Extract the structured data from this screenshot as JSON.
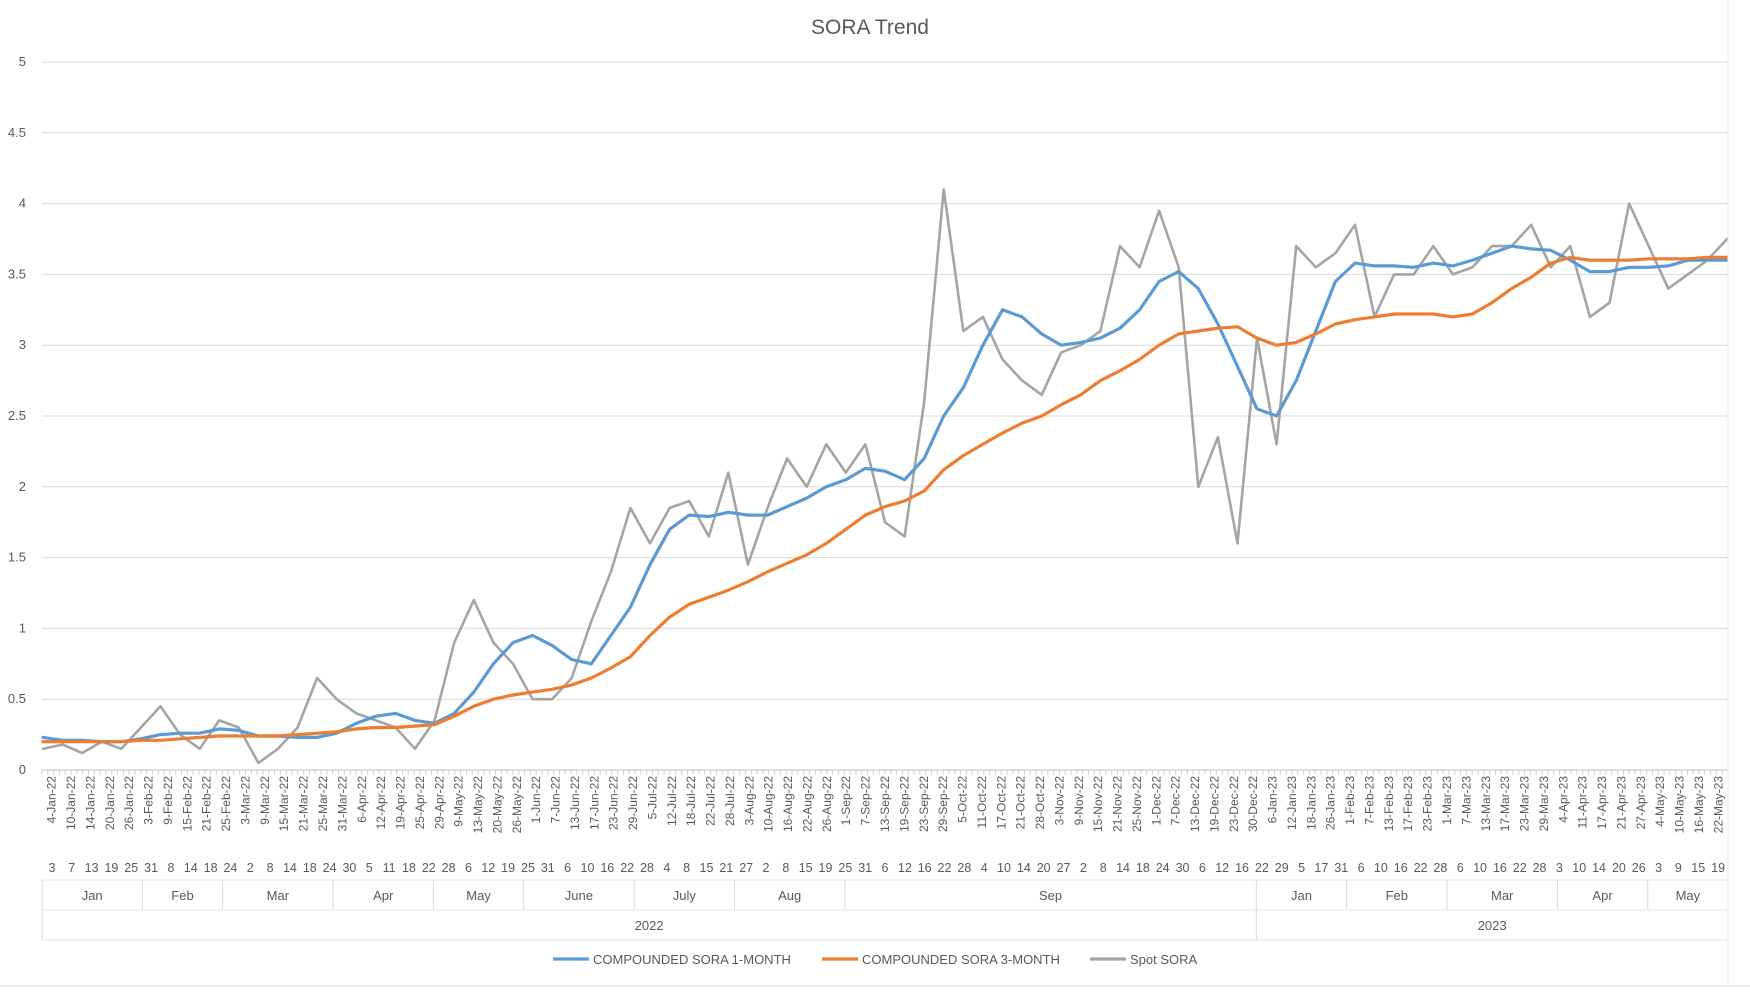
{
  "chart_data": {
    "type": "line",
    "title": "SORA Trend",
    "ylim": [
      0,
      5
    ],
    "yticks": [
      "0",
      "0.5",
      "1",
      "1.5",
      "2",
      "2.5",
      "3",
      "3.5",
      "4",
      "4.5",
      "5"
    ],
    "grid": "horizontal",
    "legend": "bottom",
    "x_date_labels": [
      "4-Jan-22",
      "10-Jan-22",
      "14-Jan-22",
      "20-Jan-22",
      "26-Jan-22",
      "3-Feb-22",
      "9-Feb-22",
      "15-Feb-22",
      "21-Feb-22",
      "25-Feb-22",
      "3-Mar-22",
      "9-Mar-22",
      "15-Mar-22",
      "21-Mar-22",
      "25-Mar-22",
      "31-Mar-22",
      "6-Apr-22",
      "12-Apr-22",
      "19-Apr-22",
      "25-Apr-22",
      "29-Apr-22",
      "9-May-22",
      "13-May-22",
      "20-May-22",
      "26-May-22",
      "1-Jun-22",
      "7-Jun-22",
      "13-Jun-22",
      "17-Jun-22",
      "23-Jun-22",
      "29-Jun-22",
      "5-Jul-22",
      "12-Jul-22",
      "18-Jul-22",
      "22-Jul-22",
      "28-Jul-22",
      "3-Aug-22",
      "10-Aug-22",
      "16-Aug-22",
      "22-Aug-22",
      "26-Aug-22",
      "1-Sep-22",
      "7-Sep-22",
      "13-Sep-22",
      "19-Sep-22",
      "23-Sep-22",
      "29-Sep-22",
      "5-Oct-22",
      "11-Oct-22",
      "17-Oct-22",
      "21-Oct-22",
      "28-Oct-22",
      "3-Nov-22",
      "9-Nov-22",
      "15-Nov-22",
      "21-Nov-22",
      "25-Nov-22",
      "1-Dec-22",
      "7-Dec-22",
      "13-Dec-22",
      "19-Dec-22",
      "23-Dec-22",
      "30-Dec-22",
      "6-Jan-23",
      "12-Jan-23",
      "18-Jan-23",
      "26-Jan-23",
      "1-Feb-23",
      "7-Feb-23",
      "13-Feb-23",
      "17-Feb-23",
      "23-Feb-23",
      "1-Mar-23",
      "7-Mar-23",
      "13-Mar-23",
      "17-Mar-23",
      "23-Mar-23",
      "29-Mar-23",
      "4-Apr-23",
      "11-Apr-23",
      "17-Apr-23",
      "21-Apr-23",
      "27-Apr-23",
      "4-May-23",
      "10-May-23",
      "16-May-23",
      "22-May-23"
    ],
    "day_row": [
      "3",
      "7",
      "13",
      "19",
      "25",
      "31",
      "8",
      "14",
      "18",
      "24",
      "2",
      "8",
      "14",
      "18",
      "24",
      "30",
      "5",
      "11",
      "18",
      "22",
      "28",
      "6",
      "12",
      "19",
      "25",
      "31",
      "6",
      "10",
      "16",
      "22",
      "28",
      "4",
      "8",
      "15",
      "21",
      "27",
      "2",
      "8",
      "15",
      "19",
      "25",
      "31",
      "6",
      "12",
      "16",
      "22",
      "28",
      "4",
      "10",
      "14",
      "20",
      "27",
      "2",
      "8",
      "14",
      "18",
      "24",
      "30",
      "6",
      "12",
      "16",
      "22",
      "29",
      "5",
      "17",
      "31",
      "6",
      "10",
      "16",
      "22",
      "28",
      "6",
      "10",
      "16",
      "22",
      "28",
      "3",
      "10",
      "14",
      "20",
      "26",
      "3",
      "9",
      "15",
      "19"
    ],
    "month_row": [
      "Jan",
      "Feb",
      "Mar",
      "Apr",
      "May",
      "June",
      "July",
      "Aug",
      "Sep",
      "Jan",
      "Feb",
      "Mar",
      "Apr",
      "May"
    ],
    "year_row": [
      "2022",
      "2023"
    ],
    "series": [
      {
        "name": "COMPOUNDED SORA 1-MONTH",
        "color": "#5b9bd5",
        "values": [
          0.23,
          0.21,
          0.21,
          0.2,
          0.2,
          0.22,
          0.25,
          0.26,
          0.26,
          0.29,
          0.28,
          0.24,
          0.24,
          0.23,
          0.23,
          0.26,
          0.33,
          0.38,
          0.4,
          0.35,
          0.33,
          0.4,
          0.55,
          0.75,
          0.9,
          0.95,
          0.88,
          0.78,
          0.75,
          0.95,
          1.15,
          1.45,
          1.7,
          1.8,
          1.79,
          1.82,
          1.8,
          1.8,
          1.86,
          1.92,
          2.0,
          2.05,
          2.13,
          2.11,
          2.05,
          2.2,
          2.5,
          2.7,
          3.0,
          3.25,
          3.2,
          3.08,
          3.0,
          3.02,
          3.05,
          3.12,
          3.25,
          3.45,
          3.52,
          3.4,
          3.15,
          2.85,
          2.55,
          2.5,
          2.75,
          3.1,
          3.45,
          3.58,
          3.56,
          3.56,
          3.55,
          3.58,
          3.56,
          3.6,
          3.65,
          3.7,
          3.68,
          3.67,
          3.6,
          3.52,
          3.52,
          3.55,
          3.55,
          3.56,
          3.6,
          3.6,
          3.6
        ]
      },
      {
        "name": "COMPOUNDED SORA 3-MONTH",
        "color": "#ed7d31",
        "values": [
          0.2,
          0.2,
          0.2,
          0.2,
          0.2,
          0.21,
          0.21,
          0.22,
          0.23,
          0.24,
          0.24,
          0.24,
          0.24,
          0.25,
          0.26,
          0.27,
          0.29,
          0.3,
          0.3,
          0.31,
          0.32,
          0.38,
          0.45,
          0.5,
          0.53,
          0.55,
          0.57,
          0.6,
          0.65,
          0.72,
          0.8,
          0.95,
          1.08,
          1.17,
          1.22,
          1.27,
          1.33,
          1.4,
          1.46,
          1.52,
          1.6,
          1.7,
          1.8,
          1.86,
          1.9,
          1.97,
          2.12,
          2.22,
          2.3,
          2.38,
          2.45,
          2.5,
          2.58,
          2.65,
          2.75,
          2.82,
          2.9,
          3.0,
          3.08,
          3.1,
          3.12,
          3.13,
          3.05,
          3.0,
          3.02,
          3.08,
          3.15,
          3.18,
          3.2,
          3.22,
          3.22,
          3.22,
          3.2,
          3.22,
          3.3,
          3.4,
          3.48,
          3.58,
          3.62,
          3.6,
          3.6,
          3.6,
          3.61,
          3.61,
          3.61,
          3.62,
          3.62
        ]
      },
      {
        "name": "Spot SORA",
        "color": "#a5a5a5",
        "values": [
          0.15,
          0.18,
          0.12,
          0.2,
          0.15,
          0.3,
          0.45,
          0.25,
          0.15,
          0.35,
          0.3,
          0.05,
          0.15,
          0.3,
          0.65,
          0.5,
          0.4,
          0.35,
          0.3,
          0.15,
          0.35,
          0.9,
          1.2,
          0.9,
          0.75,
          0.5,
          0.5,
          0.65,
          1.05,
          1.4,
          1.85,
          1.6,
          1.85,
          1.9,
          1.65,
          2.1,
          1.45,
          1.85,
          2.2,
          2.0,
          2.3,
          2.1,
          2.3,
          1.75,
          1.65,
          2.6,
          4.1,
          3.1,
          3.2,
          2.9,
          2.75,
          2.65,
          2.95,
          3.0,
          3.1,
          3.7,
          3.55,
          3.95,
          3.55,
          2.0,
          2.35,
          1.6,
          3.05,
          2.3,
          3.7,
          3.55,
          3.65,
          3.85,
          3.2,
          3.5,
          3.5,
          3.7,
          3.5,
          3.55,
          3.7,
          3.7,
          3.85,
          3.55,
          3.7,
          3.2,
          3.3,
          4.0,
          3.7,
          3.4,
          3.5,
          3.6,
          3.75
        ]
      }
    ]
  }
}
